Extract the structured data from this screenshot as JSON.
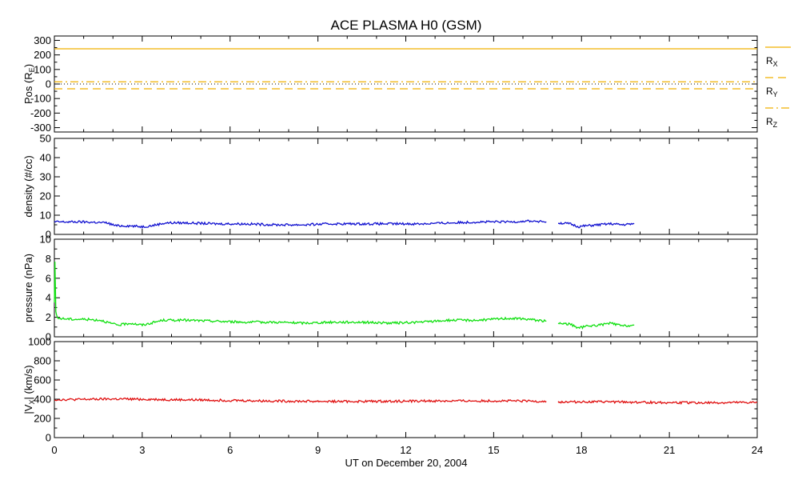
{
  "title": "ACE PLASMA H0 (GSM)",
  "xlabel": "UT on December 20, 2004",
  "x_ticks": [
    "0",
    "3",
    "6",
    "9",
    "12",
    "15",
    "18",
    "21",
    "24"
  ],
  "colors": {
    "position": "#f0b000",
    "density": "#1010d0",
    "pressure": "#10e010",
    "velocity": "#e01010",
    "frame": "#000000"
  },
  "chart_data": [
    {
      "type": "line",
      "panel": "position",
      "ylabel_main": "Pos (R",
      "ylabel_sub": "E",
      "ylabel_end": ")",
      "ylim": [
        -330,
        330
      ],
      "yticks": [
        "300",
        "200",
        "100",
        "0",
        "-100",
        "-200",
        "-300"
      ],
      "yticks_values": [
        300,
        200,
        100,
        0,
        -100,
        -200,
        -300
      ],
      "x_range": [
        0,
        24
      ],
      "grid": false,
      "legend_placement": "right",
      "series": [
        {
          "name_main": "R",
          "name_sub": "X",
          "style": "solid",
          "x": [
            0,
            24
          ],
          "values": [
            242,
            242
          ]
        },
        {
          "name_main": "R",
          "name_sub": "Y",
          "style": "dashed",
          "x": [
            0,
            24
          ],
          "values": [
            -33,
            -33
          ]
        },
        {
          "name_main": "R",
          "name_sub": "Z",
          "style": "dash-dot",
          "x": [
            0,
            24
          ],
          "values": [
            15,
            15
          ]
        }
      ],
      "reference_line": {
        "y": 0,
        "style": "dotted"
      }
    },
    {
      "type": "line",
      "panel": "density",
      "ylabel": "density (#/cc)",
      "ylim": [
        0,
        50
      ],
      "yticks": [
        "50",
        "40",
        "30",
        "20",
        "10",
        "0"
      ],
      "yticks_values": [
        50,
        40,
        30,
        20,
        10,
        0
      ],
      "x_range": [
        0,
        24
      ],
      "grid": false,
      "segments": [
        {
          "x": [
            0,
            1,
            1.8,
            2.1,
            2.5,
            3,
            3.3,
            3.8,
            4.5,
            5.5,
            6.5,
            7.5,
            8.5,
            9.5,
            10.5,
            11.5,
            12.5,
            13.5,
            14.5,
            15.5,
            16.2,
            16.8
          ],
          "values": [
            6.5,
            6.5,
            6,
            4.5,
            4.5,
            4,
            4.5,
            6,
            6,
            5.5,
            5.5,
            5,
            5,
            5.5,
            5.5,
            5.5,
            5.5,
            6,
            6.5,
            6.5,
            7,
            6.5
          ]
        },
        {
          "x": [
            17.2,
            17.6,
            17.9,
            18.2,
            18.6,
            19,
            19.4,
            19.8
          ],
          "values": [
            6,
            5.5,
            4,
            4.5,
            5,
            5.5,
            5,
            5.5
          ]
        }
      ]
    },
    {
      "type": "line",
      "panel": "pressure",
      "ylabel": "pressure (nPa)",
      "ylim": [
        0,
        10
      ],
      "yticks": [
        "10",
        "8",
        "6",
        "4",
        "2",
        "0"
      ],
      "yticks_values": [
        10,
        8,
        6,
        4,
        2,
        0
      ],
      "x_range": [
        0,
        24
      ],
      "grid": false,
      "segments": [
        {
          "x": [
            0,
            0.02,
            0.05,
            0.1,
            0.6,
            1,
            1.6,
            2,
            2.2,
            2.6,
            3,
            3.3,
            3.7,
            4.5,
            5.5,
            6.5,
            7.5,
            8.5,
            9.5,
            10.5,
            11.5,
            12.5,
            13.5,
            14.5,
            15.5,
            16.2,
            16.8
          ],
          "values": [
            3.5,
            7.7,
            2.6,
            1.9,
            1.8,
            1.8,
            1.7,
            1.3,
            1.2,
            1.4,
            1.2,
            1.4,
            1.7,
            1.7,
            1.6,
            1.5,
            1.5,
            1.4,
            1.5,
            1.5,
            1.4,
            1.5,
            1.7,
            1.7,
            1.9,
            1.8,
            1.6
          ]
        },
        {
          "x": [
            17.2,
            17.6,
            17.9,
            18.2,
            18.6,
            19,
            19.4,
            19.8
          ],
          "values": [
            1.4,
            1.3,
            0.9,
            1.1,
            1.2,
            1.4,
            1.1,
            1.2
          ]
        }
      ]
    },
    {
      "type": "line",
      "panel": "velocity",
      "ylabel_pre": "|V",
      "ylabel_sub": "X",
      "ylabel_end": "| (km/s)",
      "ylim": [
        0,
        1000
      ],
      "yticks": [
        "1000",
        "800",
        "600",
        "400",
        "200",
        "0"
      ],
      "yticks_values": [
        1000,
        800,
        600,
        400,
        200,
        0
      ],
      "x_range": [
        0,
        24
      ],
      "grid": false,
      "segments": [
        {
          "x": [
            0,
            1,
            2,
            3,
            4,
            5,
            6,
            7,
            8,
            9,
            10,
            11,
            12,
            13,
            14,
            15,
            16,
            16.8
          ],
          "values": [
            395,
            398,
            402,
            400,
            395,
            392,
            388,
            383,
            380,
            378,
            376,
            378,
            380,
            382,
            382,
            383,
            380,
            378
          ]
        },
        {
          "x": [
            17.2,
            18,
            19,
            20,
            21,
            22,
            23,
            24
          ],
          "values": [
            372,
            373,
            372,
            368,
            365,
            362,
            363,
            365
          ]
        }
      ]
    }
  ]
}
